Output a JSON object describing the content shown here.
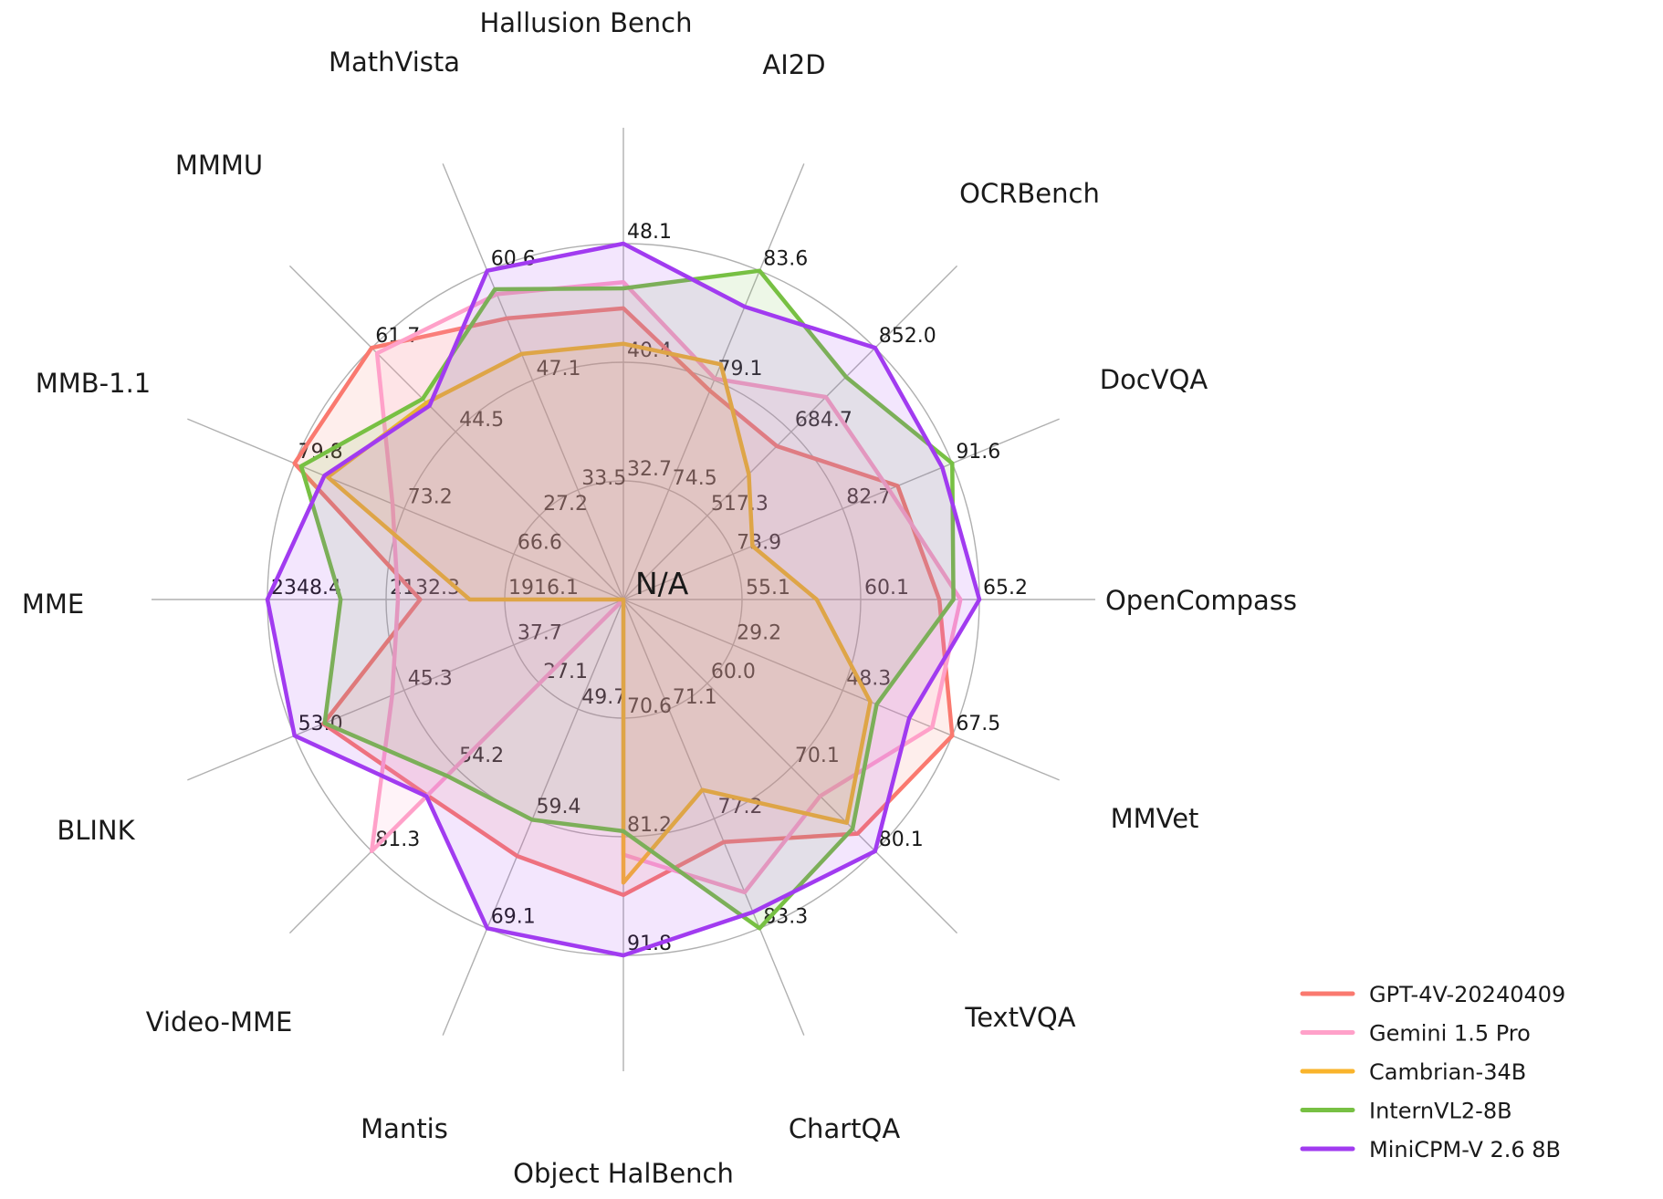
{
  "chart_data": {
    "type": "radar",
    "center_label": "N/A",
    "grid_color": "#b0b0b0",
    "background": "#ffffff",
    "legend_position": "lower right",
    "axes": [
      {
        "label": "Hallusion Bench",
        "rings": [
          "32.7",
          "40.4",
          "48.1"
        ]
      },
      {
        "label": "AI2D",
        "rings": [
          "74.5",
          "79.1",
          "83.6"
        ]
      },
      {
        "label": "OCRBench",
        "rings": [
          "517.3",
          "684.7",
          "852.0"
        ]
      },
      {
        "label": "DocVQA",
        "rings": [
          "73.9",
          "82.7",
          "91.6"
        ]
      },
      {
        "label": "OpenCompass",
        "rings": [
          "55.1",
          "60.1",
          "65.2"
        ]
      },
      {
        "label": "MMVet",
        "rings": [
          "29.2",
          "48.3",
          "67.5"
        ]
      },
      {
        "label": "TextVQA",
        "rings": [
          "60.0",
          "70.1",
          "80.1"
        ]
      },
      {
        "label": "ChartQA",
        "rings": [
          "71.1",
          "77.2",
          "83.3"
        ]
      },
      {
        "label": "Object HalBench",
        "rings": [
          "70.6",
          "81.2",
          "91.8"
        ]
      },
      {
        "label": "Mantis",
        "rings": [
          "49.7",
          "59.4",
          "69.1"
        ]
      },
      {
        "label": "Video-MME",
        "rings": [
          "27.1",
          "54.2",
          "81.3"
        ]
      },
      {
        "label": "BLINK",
        "rings": [
          "37.7",
          "45.3",
          "53.0"
        ]
      },
      {
        "label": "MME",
        "rings": [
          "1916.1",
          "2132.3",
          "2348.4"
        ]
      },
      {
        "label": "MMB-1.1",
        "rings": [
          "66.6",
          "73.2",
          "79.8"
        ]
      },
      {
        "label": "MMMU",
        "rings": [
          "27.2",
          "44.5",
          "61.7"
        ]
      },
      {
        "label": "MathVista",
        "rings": [
          "33.5",
          "47.1",
          "60.6"
        ]
      }
    ],
    "series": [
      {
        "name": "GPT-4V-20240409",
        "color": "#FA796F",
        "values": [
          43.9,
          78.6,
          656.0,
          87.2,
          63.5,
          67.5,
          78.0,
          78.5,
          86.4,
          62.7,
          63.3,
          51.0,
          2070.2,
          79.8,
          61.7,
          54.7
        ]
      },
      {
        "name": "Gemini 1.5 Pro",
        "color": "#FFA1C9",
        "values": [
          45.6,
          79.1,
          754.0,
          86.5,
          64.4,
          64.0,
          73.5,
          81.3,
          82.8,
          null,
          81.3,
          46.2,
          2110.6,
          73.9,
          60.6,
          57.7
        ]
      },
      {
        "name": "Cambrian-34B",
        "color": "#F9B42C",
        "values": [
          41.6,
          79.7,
          600.0,
          75.5,
          58.3,
          53.2,
          76.7,
          75.6,
          85.3,
          null,
          null,
          null,
          1980.0,
          77.8,
          50.4,
          50.3
        ]
      },
      {
        "name": "InternVL2-8B",
        "color": "#77C043",
        "values": [
          45.2,
          83.6,
          794.0,
          91.6,
          64.1,
          54.3,
          77.4,
          83.3,
          80.7,
          59.5,
          57.0,
          50.9,
          2215.1,
          79.4,
          51.2,
          58.3
        ]
      },
      {
        "name": "MiniCPM-V 2.6 8B",
        "color": "#A13BF0",
        "values": [
          48.1,
          82.1,
          852.0,
          90.8,
          65.2,
          60.0,
          80.1,
          82.4,
          91.8,
          69.1,
          63.6,
          53.0,
          2348.4,
          78.0,
          49.8,
          60.6
        ]
      }
    ]
  }
}
